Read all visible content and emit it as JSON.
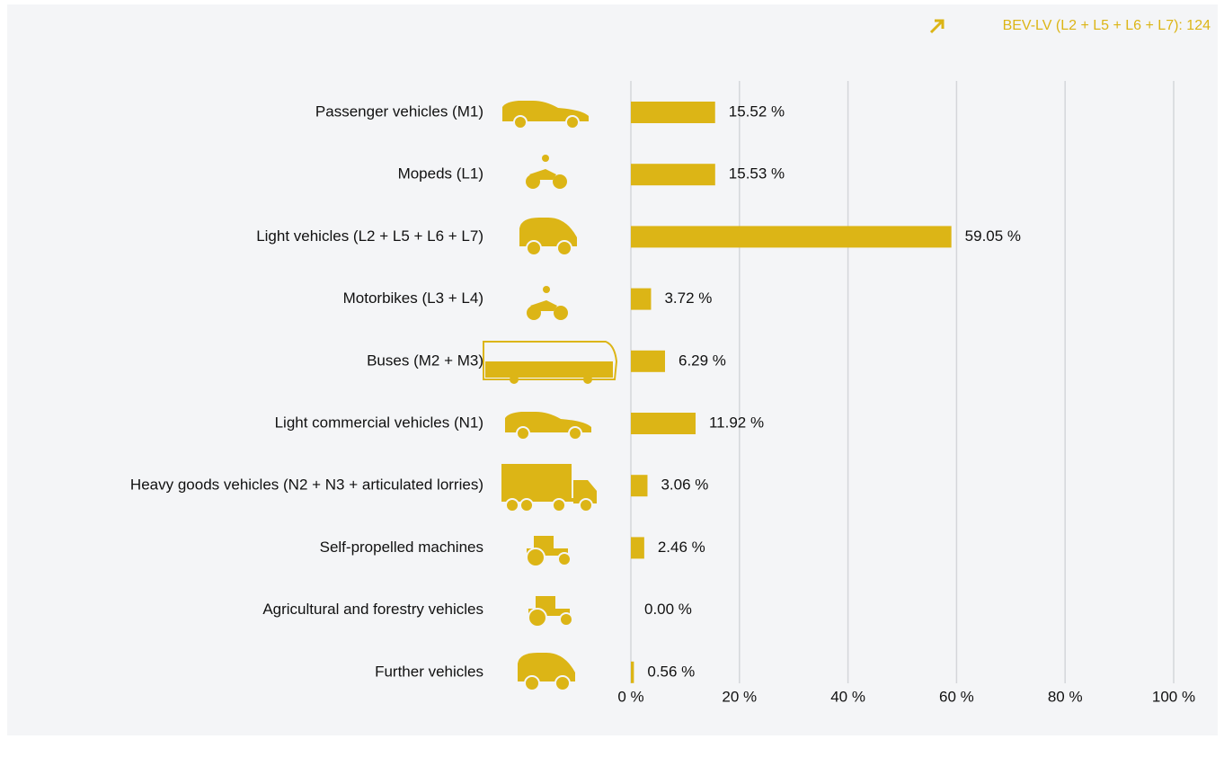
{
  "chart_data": {
    "type": "bar",
    "orientation": "horizontal",
    "annotation": "BEV-LV (L2 + L5 + L6 + L7): 124",
    "categories": [
      "Passenger vehicles (M1)",
      "Mopeds (L1)",
      "Light vehicles (L2 + L5 + L6 + L7)",
      "Motorbikes (L3 + L4)",
      "Buses (M2 + M3)",
      "Light commercial vehicles (N1)",
      "Heavy goods vehicles (N2 + N3 + articulated lorries)",
      "Self-propelled machines",
      "Agricultural and forestry vehicles",
      "Further vehicles"
    ],
    "values": [
      15.52,
      15.53,
      59.05,
      3.72,
      6.29,
      11.92,
      3.06,
      2.46,
      0.0,
      0.56
    ],
    "value_labels": [
      "15.52 %",
      "15.53 %",
      "59.05 %",
      "3.72 %",
      "6.29 %",
      "11.92 %",
      "3.06 %",
      "2.46 %",
      "0.00 %",
      "0.56 %"
    ],
    "color": "#dcb516",
    "xlim": [
      0,
      100
    ],
    "xticks": [
      {
        "value": 0,
        "label": "0 %"
      },
      {
        "value": 20,
        "label": "20 %"
      },
      {
        "value": 40,
        "label": "40 %"
      },
      {
        "value": 60,
        "label": "60 %"
      },
      {
        "value": 80,
        "label": "80 %"
      },
      {
        "value": 100,
        "label": "100 %"
      }
    ],
    "grid": true
  }
}
